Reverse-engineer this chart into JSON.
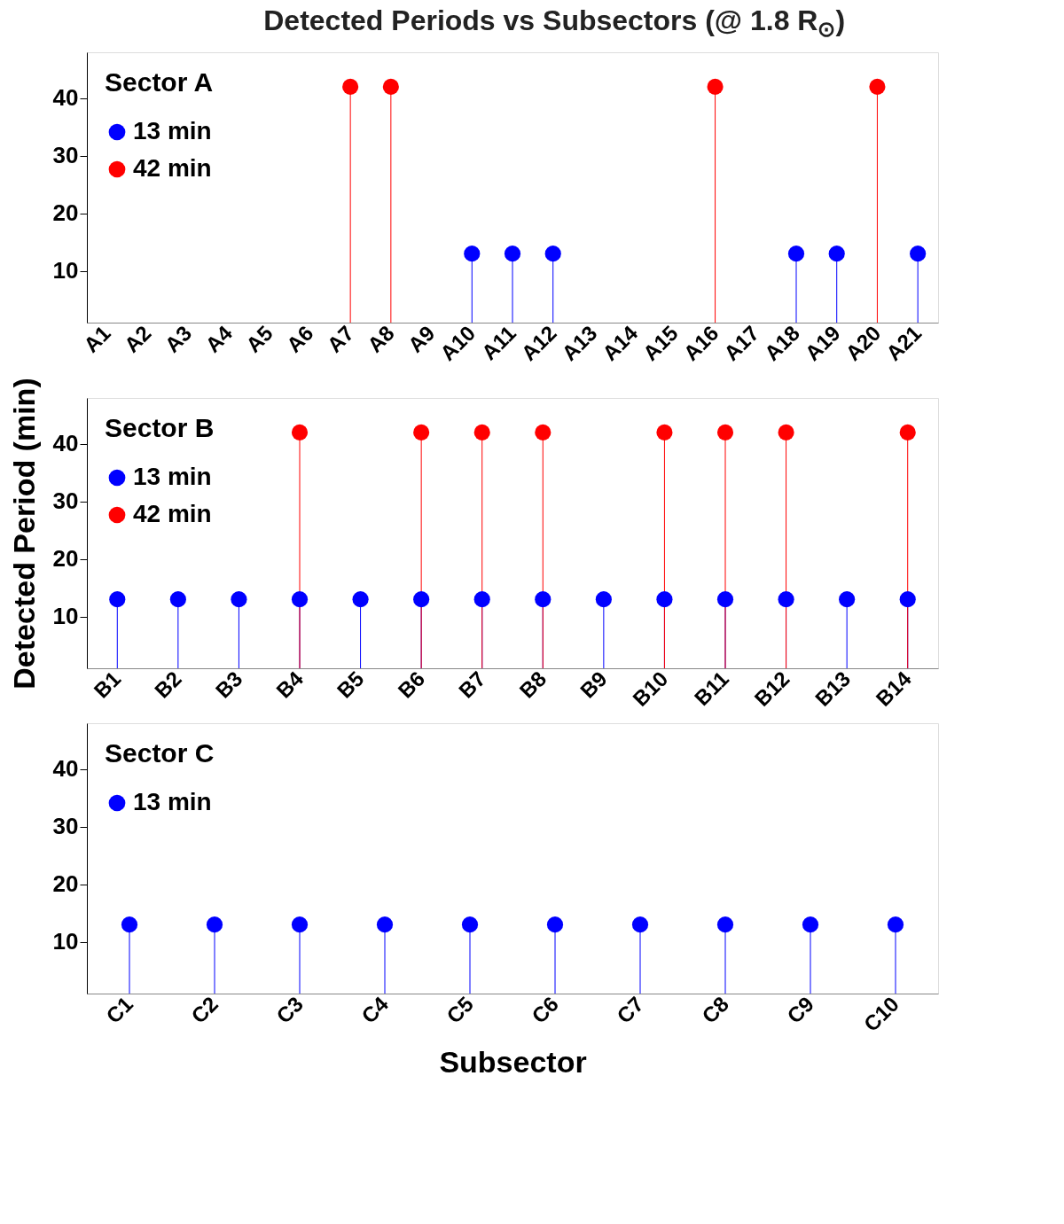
{
  "chart_data": [
    {
      "type": "lollipop",
      "title": "Detected Periods vs Subsectors (@ 1.8 R$_{⊙}$)",
      "legend_title": "Sector A",
      "legend": "top left",
      "marker": "circle",
      "grid": false,
      "categories": [
        "A1",
        "A2",
        "A3",
        "A4",
        "A5",
        "A6",
        "A7",
        "A8",
        "A9",
        "A10",
        "A11",
        "A12",
        "A13",
        "A14",
        "A15",
        "A16",
        "A17",
        "A18",
        "A19",
        "A20",
        "A21"
      ],
      "ylim": [
        1,
        48
      ],
      "yticks": [
        10,
        20,
        30,
        40
      ],
      "series": [
        {
          "name": "13 min",
          "color": "#0000ff",
          "values": [
            null,
            null,
            null,
            null,
            null,
            null,
            null,
            null,
            null,
            13,
            13,
            13,
            null,
            null,
            null,
            null,
            null,
            13,
            13,
            null,
            13
          ]
        },
        {
          "name": "42 min",
          "color": "#ff0000",
          "values": [
            null,
            null,
            null,
            null,
            null,
            null,
            42,
            42,
            null,
            null,
            null,
            null,
            null,
            null,
            null,
            42,
            null,
            null,
            null,
            42,
            null
          ]
        }
      ]
    },
    {
      "type": "lollipop",
      "ylabel": "Detected Period (min)",
      "legend_title": "Sector B",
      "legend": "top left",
      "marker": "circle",
      "grid": false,
      "categories": [
        "B1",
        "B2",
        "B3",
        "B4",
        "B5",
        "B6",
        "B7",
        "B8",
        "B9",
        "B10",
        "B11",
        "B12",
        "B13",
        "B14"
      ],
      "ylim": [
        1,
        48
      ],
      "yticks": [
        10,
        20,
        30,
        40
      ],
      "series": [
        {
          "name": "13 min",
          "color": "#0000ff",
          "values": [
            13,
            13,
            13,
            13,
            13,
            13,
            13,
            13,
            13,
            13,
            13,
            13,
            13,
            13
          ]
        },
        {
          "name": "42 min",
          "color": "#ff0000",
          "values": [
            null,
            null,
            null,
            42,
            null,
            42,
            42,
            42,
            null,
            42,
            42,
            42,
            null,
            42
          ]
        }
      ]
    },
    {
      "type": "lollipop",
      "xlabel": "Subsector",
      "legend_title": "Sector C",
      "legend": "top left",
      "marker": "circle",
      "grid": false,
      "categories": [
        "C1",
        "C2",
        "C3",
        "C4",
        "C5",
        "C6",
        "C7",
        "C8",
        "C9",
        "C10"
      ],
      "ylim": [
        1,
        48
      ],
      "yticks": [
        10,
        20,
        30,
        40
      ],
      "series": [
        {
          "name": "13 min",
          "color": "#0000ff",
          "values": [
            13,
            13,
            13,
            13,
            13,
            13,
            13,
            13,
            13,
            13
          ]
        }
      ]
    }
  ]
}
